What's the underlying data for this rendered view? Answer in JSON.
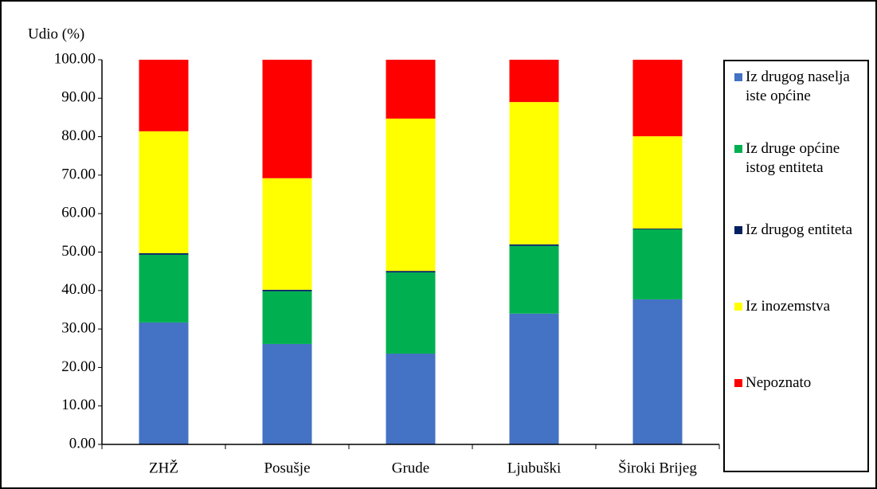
{
  "chart_data": {
    "type": "stacked_bar",
    "y_label": "Udio (%)",
    "categories": [
      "ZHŽ",
      "Posušje",
      "Grude",
      "Ljubuški",
      "Široki Brijeg"
    ],
    "series": [
      {
        "name": "Iz drugog naselja iste općine",
        "color": "#4472c4",
        "values": [
          31.7,
          26.1,
          23.6,
          34.0,
          37.7
        ]
      },
      {
        "name": "Iz druge općine istog entiteta",
        "color": "#00b050",
        "values": [
          17.6,
          13.7,
          21.1,
          17.6,
          18.2
        ]
      },
      {
        "name": "Iz drugog entiteta",
        "color": "#002060",
        "values": [
          0.4,
          0.4,
          0.4,
          0.4,
          0.2
        ]
      },
      {
        "name": "Iz inozemstva",
        "color": "#ffff00",
        "values": [
          31.7,
          29.0,
          39.6,
          37.0,
          24.0
        ]
      },
      {
        "name": "Nepoznato",
        "color": "#ff0000",
        "values": [
          18.6,
          30.8,
          15.3,
          11.0,
          19.9
        ]
      }
    ],
    "ylim": [
      0,
      100
    ],
    "yticks": [
      {
        "value": 0,
        "label": "0.00"
      },
      {
        "value": 10,
        "label": "10.00"
      },
      {
        "value": 20,
        "label": "20.00"
      },
      {
        "value": 30,
        "label": "30.00"
      },
      {
        "value": 40,
        "label": "40.00"
      },
      {
        "value": 50,
        "label": "50.00"
      },
      {
        "value": 60,
        "label": "60.00"
      },
      {
        "value": 70,
        "label": "70.00"
      },
      {
        "value": 80,
        "label": "80.00"
      },
      {
        "value": 90,
        "label": "90.00"
      },
      {
        "value": 100,
        "label": "100.00"
      }
    ],
    "legend": "right",
    "grid": false
  }
}
